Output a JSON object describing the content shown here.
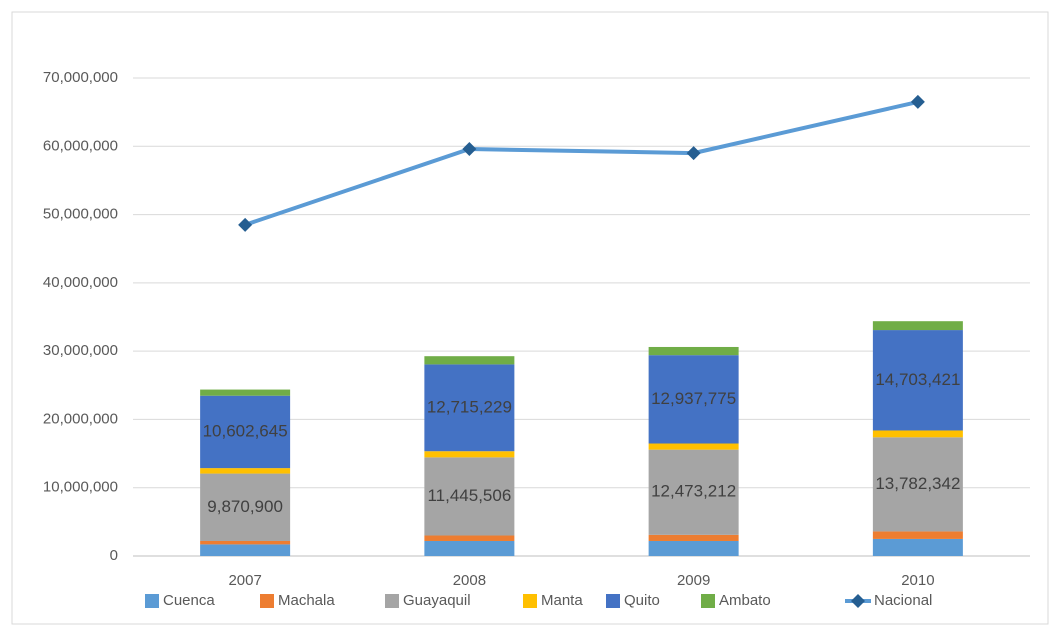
{
  "chart_data": {
    "type": "bar_line",
    "categories": [
      "2007",
      "2008",
      "2009",
      "2010"
    ],
    "series": [
      {
        "name": "Cuenca",
        "color": "#5b9bd5",
        "values": [
          1700000,
          2200000,
          2200000,
          2500000
        ]
      },
      {
        "name": "Machala",
        "color": "#ed7d31",
        "values": [
          500000,
          800000,
          900000,
          1100000
        ]
      },
      {
        "name": "Guayaquil",
        "color": "#a5a5a5",
        "values": [
          9870900,
          11445506,
          12473212,
          13782342
        ],
        "value_labels": [
          "9,870,900",
          "11,445,506",
          "12,473,212",
          "13,782,342"
        ]
      },
      {
        "name": "Manta",
        "color": "#ffc000",
        "values": [
          800000,
          900000,
          900000,
          1000000
        ]
      },
      {
        "name": "Quito",
        "color": "#4472c4",
        "values": [
          10602645,
          12715229,
          12937775,
          14703421
        ],
        "value_labels": [
          "10,602,645",
          "12,715,229",
          "12,937,775",
          "14,703,421"
        ]
      },
      {
        "name": "Ambato",
        "color": "#70ad47",
        "values": [
          900000,
          1200000,
          1200000,
          1300000
        ]
      },
      {
        "name": "Nacional",
        "type": "line",
        "color": "#5b9bd5",
        "marker_color": "#255e91",
        "values": [
          48500000,
          59600000,
          59000000,
          66500000
        ]
      }
    ],
    "ylim": [
      0,
      70000000
    ],
    "yticks": [
      0,
      {
        "value": 10000000,
        "label": "10,000,000"
      },
      {
        "value": 20000000,
        "label": "20,000,000"
      },
      {
        "value": 30000000,
        "label": "30,000,000"
      },
      {
        "value": 40000000,
        "label": "40,000,000"
      },
      {
        "value": 50000000,
        "label": "50,000,000"
      },
      {
        "value": 60000000,
        "label": "60,000,000"
      },
      {
        "value": 70000000,
        "label": "70,000,000"
      }
    ],
    "grid": true
  }
}
